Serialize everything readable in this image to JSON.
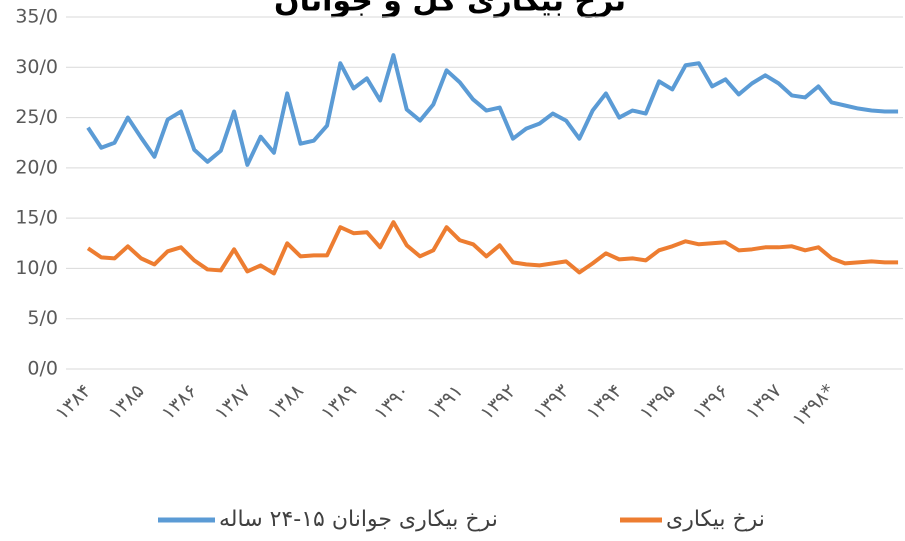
{
  "chart_data": {
    "type": "line",
    "title": "نرخ بیکاری کل و جوانان",
    "categories": [
      "۱۳۸۴",
      null,
      null,
      null,
      "۱۳۸۵",
      null,
      null,
      null,
      "۱۳۸۶",
      null,
      null,
      null,
      "۱۳۸۷",
      null,
      null,
      null,
      "۱۳۸۸",
      null,
      null,
      null,
      "۱۳۸۹",
      null,
      null,
      null,
      "۱۳۹۰",
      null,
      null,
      null,
      "۱۳۹۱",
      null,
      null,
      null,
      "۱۳۹۲",
      null,
      null,
      null,
      "۱۳۹۳",
      null,
      null,
      null,
      "۱۳۹۴",
      null,
      null,
      null,
      "۱۳۹۵",
      null,
      null,
      null,
      "۱۳۹۶",
      null,
      null,
      null,
      "۱۳۹۷",
      null,
      null,
      null,
      "۱۳۹۸*",
      null,
      null,
      null,
      null,
      null
    ],
    "series": [
      {
        "name": "نرخ بیکاری جوانان ۱۵-۲۴ ساله",
        "color": "#5b9bd5",
        "values": [
          24.0,
          22.0,
          22.5,
          25.0,
          23.0,
          21.1,
          24.8,
          25.6,
          21.8,
          20.6,
          21.7,
          25.6,
          20.3,
          23.1,
          21.5,
          27.4,
          22.4,
          22.7,
          24.2,
          30.4,
          27.9,
          28.9,
          26.7,
          31.2,
          25.8,
          24.7,
          26.3,
          29.7,
          28.5,
          26.8,
          25.7,
          26.0,
          22.9,
          23.9,
          24.4,
          25.4,
          24.7,
          22.9,
          25.7,
          27.4,
          25.0,
          25.7,
          25.4,
          28.6,
          27.8,
          30.2,
          30.4,
          28.1,
          28.8,
          27.3,
          28.4,
          29.2,
          28.4,
          27.2,
          27.0,
          28.1,
          26.5,
          26.2,
          25.9,
          25.7,
          25.6,
          25.6
        ]
      },
      {
        "name": "نرخ بیکاری",
        "color": "#ed7d31",
        "values": [
          12.0,
          11.1,
          11.0,
          12.2,
          11.0,
          10.4,
          11.7,
          12.1,
          10.8,
          9.9,
          9.8,
          11.9,
          9.7,
          10.3,
          9.5,
          12.5,
          11.2,
          11.3,
          11.3,
          14.1,
          13.5,
          13.6,
          12.1,
          14.6,
          12.3,
          11.2,
          11.8,
          14.1,
          12.8,
          12.4,
          11.2,
          12.3,
          10.6,
          10.4,
          10.3,
          10.5,
          10.7,
          9.6,
          10.5,
          11.5,
          10.9,
          11.0,
          10.8,
          11.8,
          12.2,
          12.7,
          12.4,
          12.5,
          12.6,
          11.8,
          11.9,
          12.1,
          12.1,
          12.2,
          11.8,
          12.1,
          11.0,
          10.5,
          10.6,
          10.7,
          10.6,
          10.6
        ]
      }
    ],
    "ylim": [
      0,
      35
    ],
    "yticks": [
      {
        "value": 0,
        "label": "0/0"
      },
      {
        "value": 5,
        "label": "5/0"
      },
      {
        "value": 10,
        "label": "10/0"
      },
      {
        "value": 15,
        "label": "15/0"
      },
      {
        "value": 20,
        "label": "20/0"
      },
      {
        "value": 25,
        "label": "25/0"
      },
      {
        "value": 30,
        "label": "30/0"
      },
      {
        "value": 35,
        "label": "35/0"
      }
    ],
    "grid": true
  }
}
